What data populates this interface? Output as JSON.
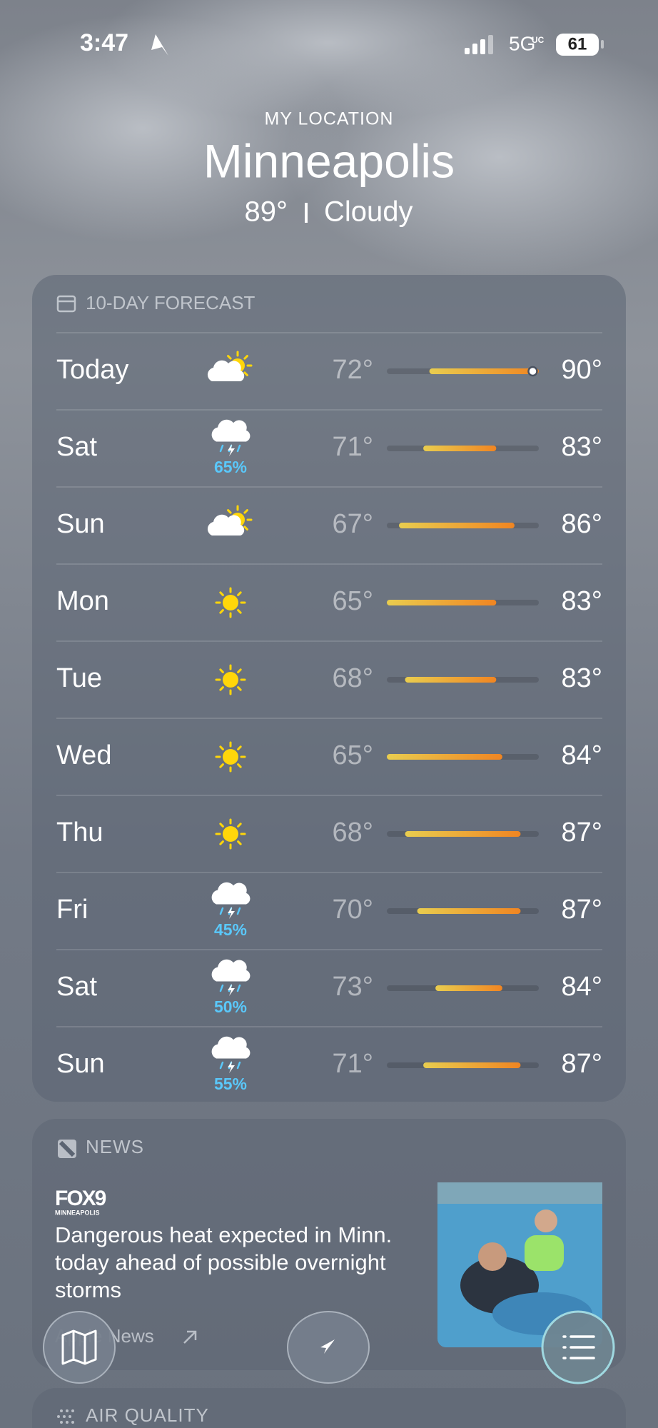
{
  "status_bar": {
    "time": "3:47",
    "network": "5G",
    "network_sub": "UC",
    "battery": "61"
  },
  "header": {
    "location_label": "MY LOCATION",
    "city": "Minneapolis",
    "temperature": "89°",
    "condition": "Cloudy"
  },
  "forecast": {
    "title": "10-DAY FORECAST",
    "rows": [
      {
        "day": "Today",
        "icon": "partly-cloudy",
        "precip": null,
        "low": "72°",
        "high": "90°"
      },
      {
        "day": "Sat",
        "icon": "thunderstorm",
        "precip": "65%",
        "low": "71°",
        "high": "83°"
      },
      {
        "day": "Sun",
        "icon": "partly-cloudy",
        "precip": null,
        "low": "67°",
        "high": "86°"
      },
      {
        "day": "Mon",
        "icon": "sunny",
        "precip": null,
        "low": "65°",
        "high": "83°"
      },
      {
        "day": "Tue",
        "icon": "sunny",
        "precip": null,
        "low": "68°",
        "high": "83°"
      },
      {
        "day": "Wed",
        "icon": "sunny",
        "precip": null,
        "low": "65°",
        "high": "84°"
      },
      {
        "day": "Thu",
        "icon": "sunny",
        "precip": null,
        "low": "68°",
        "high": "87°"
      },
      {
        "day": "Fri",
        "icon": "thunderstorm",
        "precip": "45%",
        "low": "70°",
        "high": "87°"
      },
      {
        "day": "Sat",
        "icon": "thunderstorm",
        "precip": "50%",
        "low": "73°",
        "high": "84°"
      },
      {
        "day": "Sun",
        "icon": "thunderstorm",
        "precip": "55%",
        "low": "71°",
        "high": "87°"
      }
    ]
  },
  "news": {
    "title": "NEWS",
    "source_logo": "FOX9",
    "source_logo_sub": "MINNEAPOLIS",
    "headline_lines": [
      "Dangerous heat expected in Minn.",
      "today ahead of possible overnight",
      "storms"
    ],
    "publisher": "Apple News"
  },
  "air_quality": {
    "title": "AIR QUALITY"
  }
}
